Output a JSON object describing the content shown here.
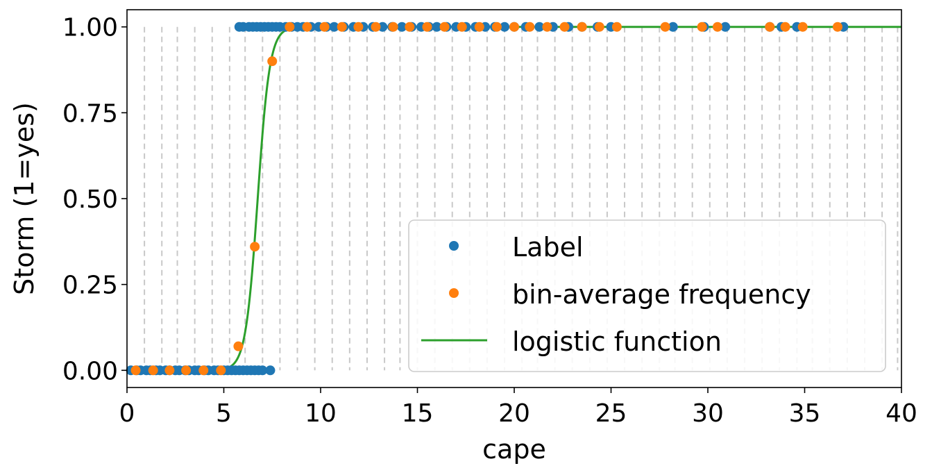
{
  "chart_data": {
    "type": "scatter",
    "xlabel": "cape",
    "ylabel": "Storm (1=yes)",
    "xlim": [
      0,
      40
    ],
    "ylim": [
      -0.05,
      1.05
    ],
    "x_ticks": [
      0,
      5,
      10,
      15,
      20,
      25,
      30,
      35,
      40
    ],
    "x_tick_labels": [
      "0",
      "5",
      "10",
      "15",
      "20",
      "25",
      "30",
      "35",
      "40"
    ],
    "y_ticks": [
      0,
      0.25,
      0.5,
      0.75,
      1.0
    ],
    "y_tick_labels": [
      "0.00",
      "0.25",
      "0.50",
      "0.75",
      "1.00"
    ],
    "legend_position": "lower-right",
    "bin_edges": [
      0.9,
      1.8,
      2.6,
      3.5,
      4.4,
      5.3,
      6.1,
      7.0,
      7.9,
      8.8,
      9.7,
      10.6,
      11.5,
      12.4,
      13.3,
      14.1,
      15.0,
      15.9,
      16.8,
      17.7,
      18.6,
      19.5,
      20.4,
      21.2,
      22.1,
      23.0,
      23.9,
      24.8,
      25.7,
      26.6,
      27.5,
      28.3,
      29.2,
      30.1,
      31.0,
      31.9,
      32.8,
      33.7,
      34.6,
      35.4,
      36.3,
      37.2,
      38.1,
      39.0,
      39.8
    ],
    "grid": "dashed vertical bin edges",
    "series": [
      {
        "name": "Label",
        "color": "#1f77b4",
        "marker": "circle",
        "points": [
          [
            0.2,
            0
          ],
          [
            0.5,
            0
          ],
          [
            0.7,
            0
          ],
          [
            1.0,
            0
          ],
          [
            1.2,
            0
          ],
          [
            1.5,
            0
          ],
          [
            1.7,
            0
          ],
          [
            2.0,
            0
          ],
          [
            2.2,
            0
          ],
          [
            2.5,
            0
          ],
          [
            2.7,
            0
          ],
          [
            3.0,
            0
          ],
          [
            3.2,
            0
          ],
          [
            3.5,
            0
          ],
          [
            3.7,
            0
          ],
          [
            4.0,
            0
          ],
          [
            4.2,
            0
          ],
          [
            4.5,
            0
          ],
          [
            4.7,
            0
          ],
          [
            5.0,
            0
          ],
          [
            5.2,
            0
          ],
          [
            5.4,
            0
          ],
          [
            5.6,
            0
          ],
          [
            5.8,
            0
          ],
          [
            6.0,
            0
          ],
          [
            6.2,
            0
          ],
          [
            6.4,
            0
          ],
          [
            6.6,
            0
          ],
          [
            6.8,
            0
          ],
          [
            7.0,
            0
          ],
          [
            7.4,
            0
          ],
          [
            5.8,
            1
          ],
          [
            6.0,
            1
          ],
          [
            6.3,
            1
          ],
          [
            6.5,
            1
          ],
          [
            6.7,
            1
          ],
          [
            6.9,
            1
          ],
          [
            7.1,
            1
          ],
          [
            7.3,
            1
          ],
          [
            7.5,
            1
          ],
          [
            7.7,
            1
          ],
          [
            7.9,
            1
          ],
          [
            8.2,
            1
          ],
          [
            8.5,
            1
          ],
          [
            8.8,
            1
          ],
          [
            9.1,
            1
          ],
          [
            9.5,
            1
          ],
          [
            9.9,
            1
          ],
          [
            10.3,
            1
          ],
          [
            10.7,
            1
          ],
          [
            11.2,
            1
          ],
          [
            11.7,
            1
          ],
          [
            12.2,
            1
          ],
          [
            12.7,
            1
          ],
          [
            13.2,
            1
          ],
          [
            13.7,
            1
          ],
          [
            14.2,
            1
          ],
          [
            14.7,
            1
          ],
          [
            15.2,
            1
          ],
          [
            15.6,
            1
          ],
          [
            16.0,
            1
          ],
          [
            16.5,
            1
          ],
          [
            17.0,
            1
          ],
          [
            17.5,
            1
          ],
          [
            18.0,
            1
          ],
          [
            18.5,
            1
          ],
          [
            19.0,
            1
          ],
          [
            19.5,
            1
          ],
          [
            20.0,
            1
          ],
          [
            20.6,
            1
          ],
          [
            21.3,
            1
          ],
          [
            22.0,
            1
          ],
          [
            22.8,
            1
          ],
          [
            23.5,
            1
          ],
          [
            24.3,
            1
          ],
          [
            25.0,
            1
          ],
          [
            28.2,
            1
          ],
          [
            29.8,
            1
          ],
          [
            30.9,
            1
          ],
          [
            33.2,
            1
          ],
          [
            33.8,
            1
          ],
          [
            34.6,
            1
          ],
          [
            37.0,
            1
          ]
        ]
      },
      {
        "name": "bin-average frequency",
        "color": "#ff7f0e",
        "marker": "circle",
        "points": [
          [
            0.45,
            0
          ],
          [
            1.35,
            0
          ],
          [
            2.2,
            0
          ],
          [
            3.05,
            0
          ],
          [
            3.95,
            0
          ],
          [
            4.85,
            0
          ],
          [
            5.75,
            0.07
          ],
          [
            6.6,
            0.36
          ],
          [
            7.5,
            0.9
          ],
          [
            8.4,
            1
          ],
          [
            9.3,
            1
          ],
          [
            10.2,
            1
          ],
          [
            11.1,
            1
          ],
          [
            11.95,
            1
          ],
          [
            12.85,
            1
          ],
          [
            13.75,
            1
          ],
          [
            14.6,
            1
          ],
          [
            15.5,
            1
          ],
          [
            16.4,
            1
          ],
          [
            17.3,
            1
          ],
          [
            18.2,
            1
          ],
          [
            19.1,
            1
          ],
          [
            20.0,
            1
          ],
          [
            20.8,
            1
          ],
          [
            21.7,
            1
          ],
          [
            22.6,
            1
          ],
          [
            23.5,
            1
          ],
          [
            24.4,
            1
          ],
          [
            25.3,
            1
          ],
          [
            27.8,
            1
          ],
          [
            29.7,
            1
          ],
          [
            30.5,
            1
          ],
          [
            33.2,
            1
          ],
          [
            34.0,
            1
          ],
          [
            34.9,
            1
          ],
          [
            36.7,
            1
          ]
        ]
      },
      {
        "name": "logistic function",
        "color": "#2ca02c",
        "type": "line",
        "model": "logistic",
        "midpoint": 6.75,
        "steepness": 3.2,
        "x_range": [
          0,
          40
        ]
      }
    ]
  }
}
